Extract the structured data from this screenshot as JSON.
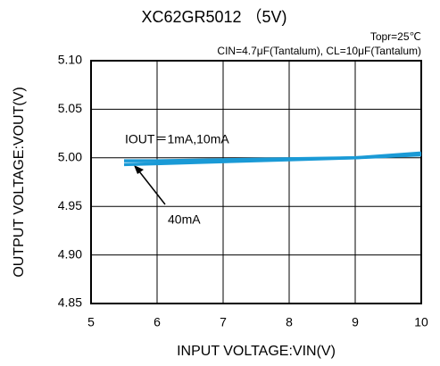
{
  "chart_data": {
    "type": "line",
    "title": "XC62GR5012 （5V)",
    "subtitle": "Topr=25℃",
    "annotations": [
      "CIN=4.7μF(Tantalum), CL=10μF(Tantalum)"
    ],
    "x_label": "INPUT VOLTAGE:VIN(V)",
    "y_label": "OUTPUT VOLTAGE:VOUT(V)",
    "x": [
      5.5,
      6,
      7,
      8,
      9,
      10
    ],
    "series": [
      {
        "name": "IOUT＝1mA,10mA",
        "color": "#1a9ad6",
        "values": [
          4.997,
          4.997,
          4.998,
          4.999,
          5.0,
          5.005
        ]
      },
      {
        "name": "40mA",
        "color": "#1a9ad6",
        "values": [
          4.993,
          4.994,
          4.996,
          4.998,
          5.0,
          5.003
        ]
      }
    ],
    "xlim": [
      5,
      10
    ],
    "xticks": [
      5,
      6,
      7,
      8,
      9,
      10
    ],
    "ylim": [
      4.85,
      5.1
    ],
    "yticks": [
      4.85,
      {
        "value": 4.9,
        "label": "4.90"
      },
      4.95,
      {
        "value": 5.0,
        "label": "5.00"
      },
      5.05,
      {
        "value": 5.1,
        "label": "5.10"
      }
    ],
    "grid": true
  }
}
